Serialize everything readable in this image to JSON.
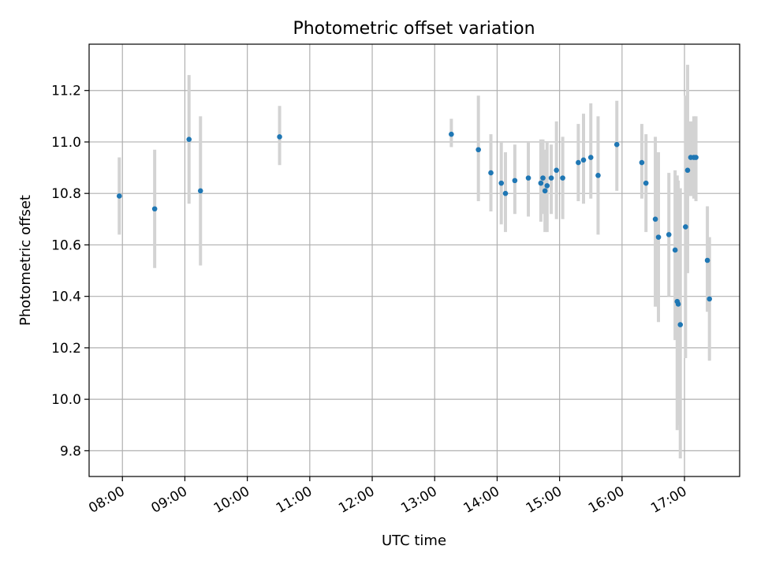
{
  "chart_data": {
    "type": "scatter",
    "title": "Photometric offset variation",
    "xlabel": "UTC time",
    "ylabel": "Photometric offset",
    "xlim": [
      "07:28",
      "17:53"
    ],
    "ylim": [
      9.7,
      11.38
    ],
    "grid": true,
    "x_ticks": [
      "08:00",
      "09:00",
      "10:00",
      "11:00",
      "12:00",
      "13:00",
      "14:00",
      "15:00",
      "16:00",
      "17:00"
    ],
    "y_ticks": [
      9.8,
      10.0,
      10.2,
      10.4,
      10.6,
      10.8,
      11.0,
      11.2
    ],
    "y_tick_labels": [
      "9.8",
      "10.0",
      "10.2",
      "10.4",
      "10.6",
      "10.8",
      "11.0",
      "11.2"
    ],
    "colors": {
      "point": "#1f77b4",
      "errorbar": "#d3d3d3"
    },
    "series": [
      {
        "points": [
          {
            "x": "07:57",
            "y": 10.79,
            "lo": 10.64,
            "hi": 10.94
          },
          {
            "x": "08:31",
            "y": 10.74,
            "lo": 10.51,
            "hi": 10.97
          },
          {
            "x": "09:04",
            "y": 11.01,
            "lo": 10.76,
            "hi": 11.26
          },
          {
            "x": "09:15",
            "y": 10.81,
            "lo": 10.52,
            "hi": 11.1
          },
          {
            "x": "10:31",
            "y": 11.02,
            "lo": 10.91,
            "hi": 11.14
          },
          {
            "x": "13:16",
            "y": 11.03,
            "lo": 10.98,
            "hi": 11.09
          },
          {
            "x": "13:42",
            "y": 10.97,
            "lo": 10.77,
            "hi": 11.18
          },
          {
            "x": "13:54",
            "y": 10.88,
            "lo": 10.73,
            "hi": 11.03
          },
          {
            "x": "14:04",
            "y": 10.84,
            "lo": 10.68,
            "hi": 11.0
          },
          {
            "x": "14:08",
            "y": 10.8,
            "lo": 10.65,
            "hi": 10.96
          },
          {
            "x": "14:17",
            "y": 10.85,
            "lo": 10.72,
            "hi": 10.99
          },
          {
            "x": "14:30",
            "y": 10.86,
            "lo": 10.71,
            "hi": 11.0
          },
          {
            "x": "14:42",
            "y": 10.84,
            "lo": 10.69,
            "hi": 11.01
          },
          {
            "x": "14:44",
            "y": 10.86,
            "lo": 10.72,
            "hi": 11.01
          },
          {
            "x": "14:46",
            "y": 10.81,
            "lo": 10.65,
            "hi": 10.97
          },
          {
            "x": "14:48",
            "y": 10.83,
            "lo": 10.65,
            "hi": 11.0
          },
          {
            "x": "14:52",
            "y": 10.86,
            "lo": 10.72,
            "hi": 10.99
          },
          {
            "x": "14:57",
            "y": 10.89,
            "lo": 10.7,
            "hi": 11.08
          },
          {
            "x": "15:03",
            "y": 10.86,
            "lo": 10.7,
            "hi": 11.02
          },
          {
            "x": "15:18",
            "y": 10.92,
            "lo": 10.77,
            "hi": 11.07
          },
          {
            "x": "15:23",
            "y": 10.93,
            "lo": 10.76,
            "hi": 11.11
          },
          {
            "x": "15:30",
            "y": 10.94,
            "lo": 10.78,
            "hi": 11.15
          },
          {
            "x": "15:37",
            "y": 10.87,
            "lo": 10.64,
            "hi": 11.1
          },
          {
            "x": "15:55",
            "y": 10.99,
            "lo": 10.81,
            "hi": 11.16
          },
          {
            "x": "16:19",
            "y": 10.92,
            "lo": 10.78,
            "hi": 11.07
          },
          {
            "x": "16:23",
            "y": 10.84,
            "lo": 10.65,
            "hi": 11.03
          },
          {
            "x": "16:32",
            "y": 10.7,
            "lo": 10.36,
            "hi": 11.02
          },
          {
            "x": "16:35",
            "y": 10.63,
            "lo": 10.3,
            "hi": 10.96
          },
          {
            "x": "16:45",
            "y": 10.64,
            "lo": 10.4,
            "hi": 10.88
          },
          {
            "x": "16:51",
            "y": 10.58,
            "lo": 10.23,
            "hi": 10.89
          },
          {
            "x": "16:53",
            "y": 10.38,
            "lo": 9.88,
            "hi": 10.87
          },
          {
            "x": "16:54",
            "y": 10.37,
            "lo": 9.9,
            "hi": 10.85
          },
          {
            "x": "16:56",
            "y": 10.29,
            "lo": 9.77,
            "hi": 10.82
          },
          {
            "x": "17:01",
            "y": 10.67,
            "lo": 10.16,
            "hi": 11.18
          },
          {
            "x": "17:03",
            "y": 10.89,
            "lo": 10.49,
            "hi": 11.3
          },
          {
            "x": "17:06",
            "y": 10.94,
            "lo": 10.79,
            "hi": 11.08
          },
          {
            "x": "17:09",
            "y": 10.94,
            "lo": 10.78,
            "hi": 11.1
          },
          {
            "x": "17:11",
            "y": 10.94,
            "lo": 10.77,
            "hi": 11.1
          },
          {
            "x": "17:22",
            "y": 10.54,
            "lo": 10.34,
            "hi": 10.75
          },
          {
            "x": "17:24",
            "y": 10.39,
            "lo": 10.15,
            "hi": 10.63
          }
        ]
      }
    ]
  }
}
